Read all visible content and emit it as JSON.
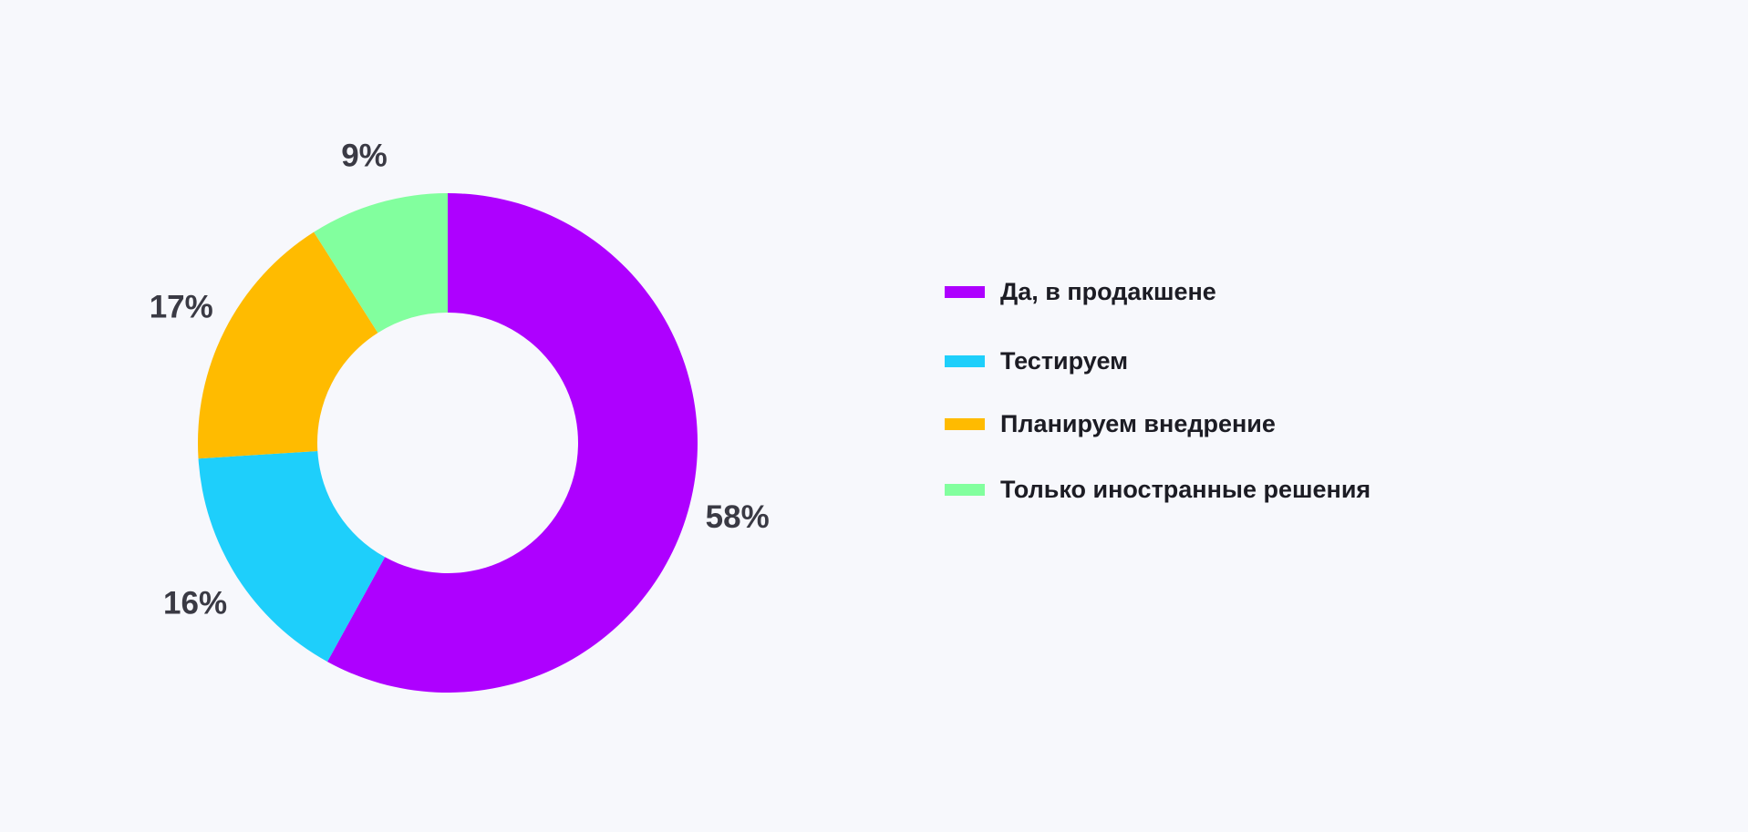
{
  "chart_data": {
    "type": "pie",
    "variant": "donut",
    "categories": [
      "Да, в продакшене",
      "Тестируем",
      "Планируем внедрение",
      "Только иностранные решения"
    ],
    "values": [
      58,
      16,
      17,
      9
    ],
    "value_labels": [
      "58%",
      "16%",
      "17%",
      "9%"
    ],
    "colors": [
      "#ae00ff",
      "#1ecffb",
      "#ffbb00",
      "#82ff9e"
    ],
    "legend_position": "right"
  }
}
